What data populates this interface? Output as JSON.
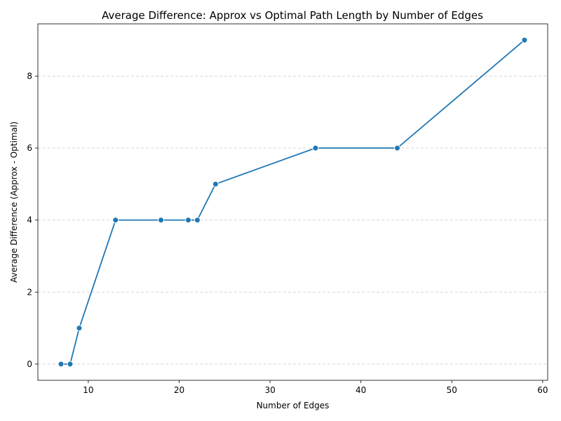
{
  "chart_data": {
    "type": "line",
    "title": "Average Difference: Approx vs Optimal Path Length by Number of Edges",
    "xlabel": "Number of Edges",
    "ylabel": "Average Difference (Approx - Optimal)",
    "x": [
      7,
      8,
      9,
      13,
      18,
      21,
      22,
      24,
      35,
      44,
      58
    ],
    "y": [
      0,
      0,
      1,
      4,
      4,
      4,
      4,
      5,
      6,
      6,
      9
    ],
    "xlim": [
      4.45,
      60.55
    ],
    "ylim": [
      -0.45,
      9.45
    ],
    "xticks": [
      10,
      20,
      30,
      40,
      50,
      60
    ],
    "yticks": [
      0,
      2,
      4,
      6,
      8
    ],
    "grid": "y-dashed",
    "line_color": "#1f77b4",
    "marker": "circle"
  }
}
